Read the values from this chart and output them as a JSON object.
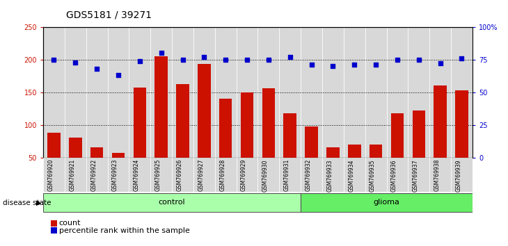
{
  "title": "GDS5181 / 39271",
  "samples": [
    "GSM769920",
    "GSM769921",
    "GSM769922",
    "GSM769923",
    "GSM769924",
    "GSM769925",
    "GSM769926",
    "GSM769927",
    "GSM769928",
    "GSM769929",
    "GSM769930",
    "GSM769931",
    "GSM769932",
    "GSM769933",
    "GSM769934",
    "GSM769935",
    "GSM769936",
    "GSM769937",
    "GSM769938",
    "GSM769939"
  ],
  "counts": [
    88,
    80,
    65,
    57,
    157,
    205,
    162,
    193,
    140,
    150,
    156,
    118,
    97,
    65,
    70,
    70,
    118,
    122,
    160,
    153
  ],
  "percentile_ranks_pct": [
    75,
    73,
    68,
    63,
    74,
    80,
    75,
    77,
    75,
    75,
    75,
    77,
    71,
    70,
    71,
    71,
    75,
    75,
    72,
    76
  ],
  "group_labels": [
    "control",
    "glioma"
  ],
  "n_control": 12,
  "n_glioma": 8,
  "control_color_light": "#e8ffe8",
  "control_color_dark": "#99ee99",
  "glioma_color_light": "#ccffcc",
  "glioma_color_dark": "#55dd55",
  "bar_color": "#cc1100",
  "dot_color": "#0000cc",
  "ymin": 50,
  "ymax": 250,
  "yticks": [
    50,
    100,
    150,
    200,
    250
  ],
  "y2min": 0,
  "y2max": 100,
  "y2ticks": [
    0,
    25,
    50,
    75,
    100
  ],
  "y2tick_labels": [
    "0",
    "25",
    "50",
    "75",
    "100%"
  ],
  "grid_levels": [
    100,
    150,
    200
  ],
  "background_color": "#ffffff",
  "cell_bg_color": "#d8d8d8",
  "title_fontsize": 10,
  "label_fontsize": 7.5,
  "tick_fontsize": 7,
  "legend_fontsize": 8
}
